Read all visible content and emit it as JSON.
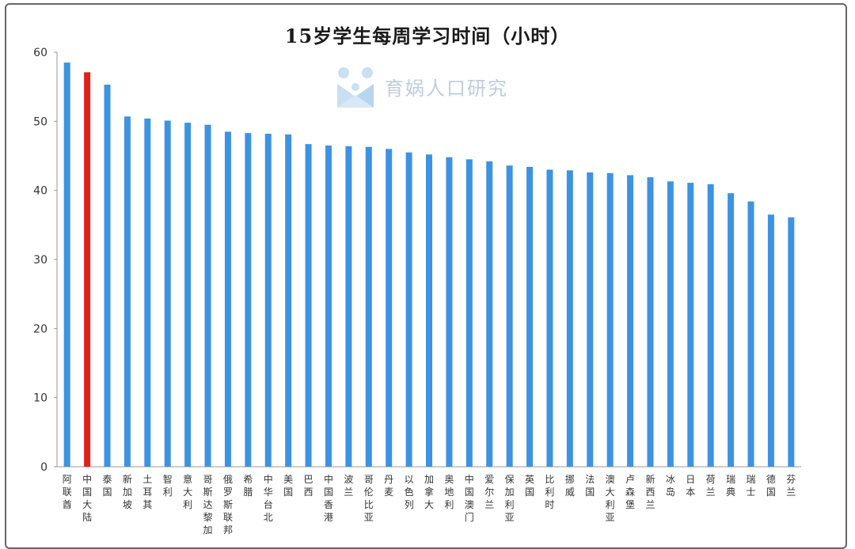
{
  "chart_data": {
    "type": "bar",
    "title": "15岁学生每周学习时间（小时）",
    "xlabel": "",
    "ylabel": "",
    "ylim": [
      0,
      60
    ],
    "yticks": [
      0,
      10,
      20,
      30,
      40,
      50,
      60
    ],
    "grid": false,
    "colors": {
      "bar": "#3d93e2",
      "highlight": "#e0211b",
      "axis": "#999999"
    },
    "highlight_category": "中国大陆",
    "categories": [
      "阿联酋",
      "中国大陆",
      "泰国",
      "新加坡",
      "土耳其",
      "智利",
      "意大利",
      "哥斯达黎加",
      "俄罗斯联邦",
      "希腊",
      "中华台北",
      "美国",
      "巴西",
      "中国香港",
      "波兰",
      "哥伦比亚",
      "丹麦",
      "以色列",
      "加拿大",
      "奥地利",
      "中国澳门",
      "爱尔兰",
      "保加利亚",
      "英国",
      "比利时",
      "挪威",
      "法国",
      "澳大利亚",
      "卢森堡",
      "新西兰",
      "冰岛",
      "日本",
      "荷兰",
      "瑞典",
      "瑞士",
      "德国",
      "芬兰"
    ],
    "values": [
      58.5,
      57.1,
      55.3,
      50.7,
      50.4,
      50.1,
      49.8,
      49.5,
      48.5,
      48.3,
      48.2,
      48.1,
      46.7,
      46.5,
      46.4,
      46.3,
      46.0,
      45.5,
      45.2,
      44.8,
      44.5,
      44.2,
      43.6,
      43.4,
      43.0,
      42.9,
      42.6,
      42.5,
      42.2,
      41.9,
      41.3,
      41.1,
      40.9,
      39.6,
      38.4,
      36.5,
      36.1
    ]
  },
  "watermark": {
    "text": "育娲人口研究",
    "icon": "brand-logo-icon"
  }
}
